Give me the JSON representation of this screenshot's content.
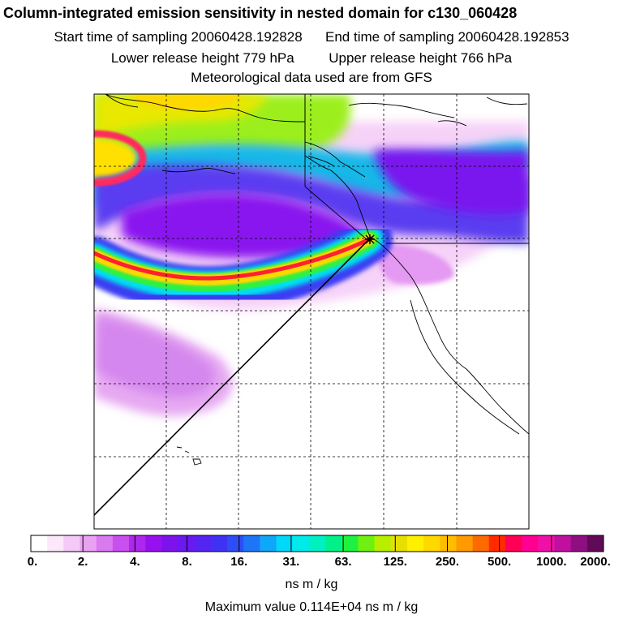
{
  "header": {
    "title": "Column-integrated emission sensitivity in nested domain for c130_060428",
    "start_label": "Start time of sampling 20060428.192828",
    "end_label": "End time of sampling 20060428.192853",
    "lower_label": "Lower release height  779 hPa",
    "upper_label": "Upper release height  766 hPa",
    "met_label": "Meteorological data used are from GFS"
  },
  "colorbar": {
    "ticks": [
      "0.",
      "2.",
      "4.",
      "8.",
      "16.",
      "31.",
      "63.",
      "125.",
      "250.",
      "500.",
      "1000.",
      "2000."
    ],
    "colors": [
      "#ffffff",
      "#fbe8fb",
      "#f4c8f7",
      "#e9a2f3",
      "#d97af0",
      "#c94ff0",
      "#ae27ee",
      "#9711ef",
      "#7e12ee",
      "#6a19f0",
      "#5524f0",
      "#4032f2",
      "#2e4ef5",
      "#1e76f7",
      "#10a6f9",
      "#00d8fa",
      "#00eaea",
      "#00f0c2",
      "#00f08a",
      "#20f040",
      "#70f010",
      "#b8ef00",
      "#e6e000",
      "#fff000",
      "#ffd800",
      "#ffbc00",
      "#ff9a00",
      "#ff6a00",
      "#ff2a00",
      "#ff0058",
      "#ff0090",
      "#f010a8",
      "#c010a0",
      "#900f80",
      "#600a58"
    ],
    "unit": "ns m / kg"
  },
  "footer": {
    "max_value": "Maximum value  0.114E+04 ns m / kg"
  },
  "map": {
    "release_marker": "star-marker",
    "grid": true
  }
}
